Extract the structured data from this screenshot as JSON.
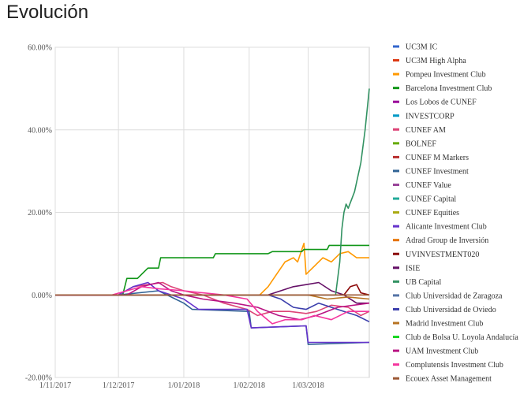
{
  "page": {
    "title": "Evolución"
  },
  "chart_data": {
    "type": "line",
    "title": "",
    "xlabel": "",
    "ylabel": "",
    "xlim": [
      "2017-11-01",
      "2018-03-30"
    ],
    "ylim": [
      -20,
      60
    ],
    "y_ticks": [
      -20,
      0,
      20,
      40,
      60
    ],
    "y_tick_labels": [
      "-20.00%",
      "0.00%",
      "20.00%",
      "40.00%",
      "60.00%"
    ],
    "x_ticks": [
      "2017-11-01",
      "2017-12-01",
      "2018-01-01",
      "2018-02-01",
      "2018-03-01"
    ],
    "x_tick_labels": [
      "1/11/2017",
      "1/12/2017",
      "1/01/2018",
      "1/02/2018",
      "1/03/2018"
    ],
    "grid": true,
    "legend_position": "right",
    "series": [
      {
        "name": "UC3M IC",
        "color": "#3366cc",
        "points": []
      },
      {
        "name": "UC3M High Alpha",
        "color": "#dc3912",
        "points": []
      },
      {
        "name": "Pompeu Investment Club",
        "color": "#ff9900",
        "points": [
          [
            "2017-11-01",
            0
          ],
          [
            "2018-02-06",
            0
          ],
          [
            "2018-02-10",
            2
          ],
          [
            "2018-02-14",
            5
          ],
          [
            "2018-02-18",
            8
          ],
          [
            "2018-02-22",
            9
          ],
          [
            "2018-02-24",
            8
          ],
          [
            "2018-02-27",
            12.5
          ],
          [
            "2018-02-28",
            5
          ],
          [
            "2018-03-04",
            7
          ],
          [
            "2018-03-08",
            9
          ],
          [
            "2018-03-12",
            8
          ],
          [
            "2018-03-16",
            10
          ],
          [
            "2018-03-20",
            10.5
          ],
          [
            "2018-03-24",
            9
          ],
          [
            "2018-03-30",
            9
          ]
        ]
      },
      {
        "name": "Barcelona Investment Club",
        "color": "#109618",
        "points": [
          [
            "2017-11-01",
            0
          ],
          [
            "2017-12-03",
            0
          ],
          [
            "2017-12-05",
            4
          ],
          [
            "2017-12-10",
            4
          ],
          [
            "2017-12-12",
            5
          ],
          [
            "2017-12-15",
            6.5
          ],
          [
            "2017-12-20",
            6.5
          ],
          [
            "2017-12-21",
            9
          ],
          [
            "2018-01-15",
            9
          ],
          [
            "2018-01-16",
            10
          ],
          [
            "2018-02-10",
            10
          ],
          [
            "2018-02-12",
            10.5
          ],
          [
            "2018-02-26",
            10.5
          ],
          [
            "2018-02-27",
            11
          ],
          [
            "2018-03-10",
            11
          ],
          [
            "2018-03-11",
            12
          ],
          [
            "2018-03-30",
            12
          ]
        ]
      },
      {
        "name": "Los Lobos de CUNEF",
        "color": "#990099",
        "points": []
      },
      {
        "name": "INVESTCORP",
        "color": "#0099c6",
        "points": []
      },
      {
        "name": "CUNEF AM",
        "color": "#dd4477",
        "points": [
          [
            "2017-11-01",
            0
          ],
          [
            "2017-12-01",
            0
          ],
          [
            "2017-12-08",
            2
          ],
          [
            "2017-12-15",
            2.5
          ],
          [
            "2017-12-22",
            3
          ],
          [
            "2017-12-26",
            2
          ],
          [
            "2018-01-01",
            1
          ],
          [
            "2018-01-10",
            0
          ],
          [
            "2018-01-20",
            -2
          ],
          [
            "2018-01-31",
            -3.5
          ],
          [
            "2018-02-05",
            -5
          ],
          [
            "2018-02-12",
            -4
          ],
          [
            "2018-02-20",
            -4
          ],
          [
            "2018-02-28",
            -4.5
          ],
          [
            "2018-03-05",
            -4
          ],
          [
            "2018-03-12",
            -2.5
          ],
          [
            "2018-03-20",
            -3
          ],
          [
            "2018-03-26",
            -5
          ],
          [
            "2018-03-30",
            -4
          ]
        ]
      },
      {
        "name": "BOLNEF",
        "color": "#66aa00",
        "points": []
      },
      {
        "name": "CUNEF M Markers",
        "color": "#b82e2e",
        "points": []
      },
      {
        "name": "CUNEF Investment",
        "color": "#316395",
        "points": [
          [
            "2017-11-01",
            0
          ],
          [
            "2017-12-01",
            0
          ],
          [
            "2017-12-20",
            1
          ],
          [
            "2018-01-01",
            -2
          ],
          [
            "2018-01-05",
            -3.5
          ],
          [
            "2018-02-01",
            -4
          ],
          [
            "2018-02-02",
            -8
          ],
          [
            "2018-02-28",
            -7.5
          ],
          [
            "2018-03-01",
            -12
          ],
          [
            "2018-03-30",
            -11.5
          ]
        ]
      },
      {
        "name": "CUNEF Value",
        "color": "#994499",
        "points": []
      },
      {
        "name": "CUNEF Capital",
        "color": "#22aa99",
        "points": []
      },
      {
        "name": "CUNEF Equities",
        "color": "#aaaa11",
        "points": []
      },
      {
        "name": "Alicante Investment Club",
        "color": "#6633cc",
        "points": [
          [
            "2017-11-01",
            0
          ],
          [
            "2017-12-01",
            0
          ],
          [
            "2017-12-08",
            2
          ],
          [
            "2017-12-15",
            3
          ],
          [
            "2017-12-20",
            1
          ],
          [
            "2017-12-26",
            0
          ],
          [
            "2018-01-01",
            -1
          ],
          [
            "2018-01-08",
            -3.5
          ],
          [
            "2018-01-31",
            -3.5
          ],
          [
            "2018-02-02",
            -8
          ],
          [
            "2018-02-28",
            -7.5
          ],
          [
            "2018-03-01",
            -11.5
          ],
          [
            "2018-03-30",
            -11.5
          ]
        ]
      },
      {
        "name": "Adrad Group de Inversión",
        "color": "#e67300",
        "points": []
      },
      {
        "name": "UVINVESTMENT020",
        "color": "#8b0707",
        "points": [
          [
            "2017-11-01",
            0
          ],
          [
            "2018-03-18",
            0
          ],
          [
            "2018-03-21",
            2
          ],
          [
            "2018-03-24",
            2.5
          ],
          [
            "2018-03-26",
            0.5
          ],
          [
            "2018-03-30",
            0
          ]
        ]
      },
      {
        "name": "ISIE",
        "color": "#651067",
        "points": [
          [
            "2017-11-01",
            0
          ],
          [
            "2018-02-10",
            0
          ],
          [
            "2018-02-16",
            1
          ],
          [
            "2018-02-22",
            2
          ],
          [
            "2018-02-28",
            2.5
          ],
          [
            "2018-03-06",
            3
          ],
          [
            "2018-03-12",
            1
          ],
          [
            "2018-03-18",
            0
          ],
          [
            "2018-03-24",
            -2
          ],
          [
            "2018-03-30",
            -2
          ]
        ]
      },
      {
        "name": "UB Capital",
        "color": "#329262",
        "points": [
          [
            "2017-11-01",
            0
          ],
          [
            "2018-03-14",
            0
          ],
          [
            "2018-03-16",
            8
          ],
          [
            "2018-03-17",
            16
          ],
          [
            "2018-03-18",
            20
          ],
          [
            "2018-03-19",
            22
          ],
          [
            "2018-03-20",
            21
          ],
          [
            "2018-03-23",
            25
          ],
          [
            "2018-03-26",
            32
          ],
          [
            "2018-03-28",
            40
          ],
          [
            "2018-03-30",
            50
          ]
        ]
      },
      {
        "name": "Club Universidad de Zaragoza",
        "color": "#5574a6",
        "points": []
      },
      {
        "name": "Club Universidad de Oviedo",
        "color": "#3b3eac",
        "points": [
          [
            "2017-11-01",
            0
          ],
          [
            "2018-02-10",
            0
          ],
          [
            "2018-02-16",
            -1
          ],
          [
            "2018-02-22",
            -3
          ],
          [
            "2018-02-28",
            -3.5
          ],
          [
            "2018-03-06",
            -2
          ],
          [
            "2018-03-12",
            -3
          ],
          [
            "2018-03-18",
            -4
          ],
          [
            "2018-03-24",
            -5
          ],
          [
            "2018-03-30",
            -6.5
          ]
        ]
      },
      {
        "name": "Madrid Investment Club",
        "color": "#b77322",
        "points": [
          [
            "2017-11-01",
            0
          ],
          [
            "2018-03-01",
            0
          ],
          [
            "2018-03-10",
            -1
          ],
          [
            "2018-03-20",
            -0.5
          ],
          [
            "2018-03-30",
            -1
          ]
        ]
      },
      {
        "name": "Club de Bolsa U. Loyola Andalucía",
        "color": "#16d620",
        "points": []
      },
      {
        "name": "UAM Investment Club",
        "color": "#b91383",
        "points": [
          [
            "2017-11-01",
            0
          ],
          [
            "2017-12-05",
            0
          ],
          [
            "2017-12-12",
            2
          ],
          [
            "2017-12-20",
            3
          ],
          [
            "2017-12-26",
            1
          ],
          [
            "2018-01-01",
            0
          ],
          [
            "2018-01-10",
            -1
          ],
          [
            "2018-01-25",
            -2
          ],
          [
            "2018-02-05",
            -3
          ],
          [
            "2018-02-15",
            -5
          ],
          [
            "2018-02-25",
            -6
          ],
          [
            "2018-03-05",
            -5
          ],
          [
            "2018-03-15",
            -3
          ],
          [
            "2018-03-30",
            -2
          ]
        ]
      },
      {
        "name": "Complutensis Investment Club",
        "color": "#f4359e",
        "points": [
          [
            "2017-11-01",
            0
          ],
          [
            "2017-11-28",
            0
          ],
          [
            "2017-12-05",
            1
          ],
          [
            "2017-12-12",
            2
          ],
          [
            "2017-12-20",
            1.5
          ],
          [
            "2018-01-01",
            1
          ],
          [
            "2018-01-10",
            0.5
          ],
          [
            "2018-01-20",
            0
          ],
          [
            "2018-01-31",
            -1
          ],
          [
            "2018-02-05",
            -4
          ],
          [
            "2018-02-12",
            -7
          ],
          [
            "2018-02-18",
            -6
          ],
          [
            "2018-02-26",
            -6
          ],
          [
            "2018-03-04",
            -5
          ],
          [
            "2018-03-12",
            -6
          ],
          [
            "2018-03-20",
            -4
          ],
          [
            "2018-03-30",
            -4
          ]
        ]
      },
      {
        "name": "Ecouex Asset Management",
        "color": "#9c5935",
        "points": [
          [
            "2017-11-01",
            0
          ],
          [
            "2018-03-30",
            0
          ]
        ]
      }
    ]
  }
}
